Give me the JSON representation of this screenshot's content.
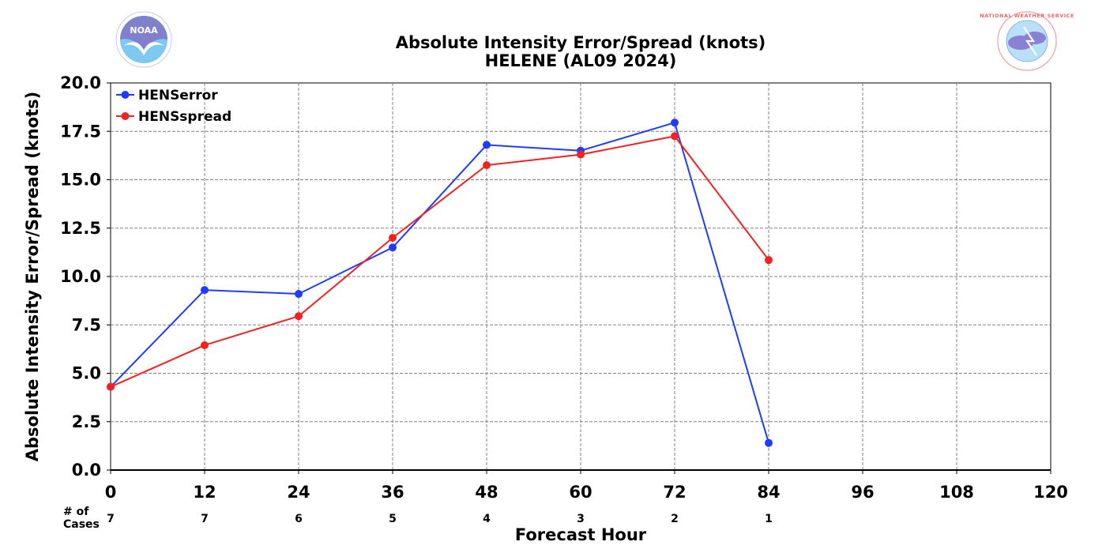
{
  "logos": {
    "left": {
      "name": "NOAA",
      "text": "NOAA"
    },
    "right": {
      "name": "National Weather Service",
      "text": "NATIONAL WEATHER SERVICE"
    }
  },
  "colors": {
    "HENSerror": "#1f3bff",
    "HENSspread": "#f22222",
    "grid": "#808080"
  },
  "chart_data": {
    "type": "line",
    "title": "Absolute Intensity Error/Spread (knots)",
    "subtitle": "HELENE (AL09 2024)",
    "xlabel": "Forecast Hour",
    "ylabel": "Absolute Intensity Error/Spread (knots)",
    "xlim": [
      0,
      120
    ],
    "ylim": [
      0,
      20
    ],
    "x_ticks": [
      0,
      12,
      24,
      36,
      48,
      60,
      72,
      84,
      96,
      108,
      120
    ],
    "y_ticks": [
      "0.0",
      "2.5",
      "5.0",
      "7.5",
      "10.0",
      "12.5",
      "15.0",
      "17.5",
      "20.0"
    ],
    "grid": true,
    "grid_style": "dashed",
    "legend_position": "top-left",
    "cases_label": "# of\nCases",
    "cases": [
      {
        "x": 0,
        "n": "7"
      },
      {
        "x": 12,
        "n": "7"
      },
      {
        "x": 24,
        "n": "6"
      },
      {
        "x": 36,
        "n": "5"
      },
      {
        "x": 48,
        "n": "4"
      },
      {
        "x": 60,
        "n": "3"
      },
      {
        "x": 72,
        "n": "2"
      },
      {
        "x": 84,
        "n": "1"
      }
    ],
    "series": [
      {
        "name": "HENSerror",
        "color": "#1f3bff",
        "x": [
          0,
          12,
          24,
          36,
          48,
          60,
          72,
          84
        ],
        "values": [
          4.3,
          9.3,
          9.1,
          11.5,
          16.8,
          16.5,
          17.95,
          1.4
        ]
      },
      {
        "name": "HENSspread",
        "color": "#f22222",
        "x": [
          0,
          12,
          24,
          36,
          48,
          60,
          72,
          84
        ],
        "values": [
          4.3,
          6.45,
          7.95,
          12.0,
          15.75,
          16.3,
          17.25,
          10.85
        ]
      }
    ]
  }
}
